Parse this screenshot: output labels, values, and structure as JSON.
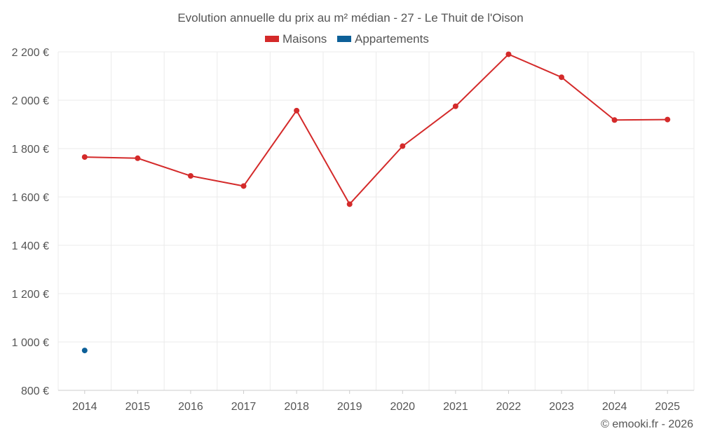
{
  "chart_data": {
    "type": "line",
    "title": "Evolution annuelle du prix au m² médian - 27 - Le Thuit de l'Oison",
    "x": [
      "2014",
      "2015",
      "2016",
      "2017",
      "2018",
      "2019",
      "2020",
      "2021",
      "2022",
      "2023",
      "2024",
      "2025"
    ],
    "y_ticks": [
      "800 €",
      "1 000 €",
      "1 200 €",
      "1 400 €",
      "1 600 €",
      "1 800 €",
      "2 000 €",
      "2 200 €"
    ],
    "y_tick_values": [
      800,
      1000,
      1200,
      1400,
      1600,
      1800,
      2000,
      2200
    ],
    "ylim": [
      800,
      2200
    ],
    "grid": true,
    "legend_position": "top-center",
    "series": [
      {
        "name": "Maisons",
        "color": "#d42a2a",
        "values": [
          1765,
          1760,
          1687,
          1645,
          1957,
          1570,
          1810,
          1975,
          2190,
          2095,
          1918,
          1920
        ]
      },
      {
        "name": "Appartements",
        "color": "#0d6098",
        "values": [
          965,
          null,
          null,
          null,
          null,
          null,
          null,
          null,
          null,
          null,
          null,
          null
        ]
      }
    ],
    "credit": "© emooki.fr - 2026"
  }
}
